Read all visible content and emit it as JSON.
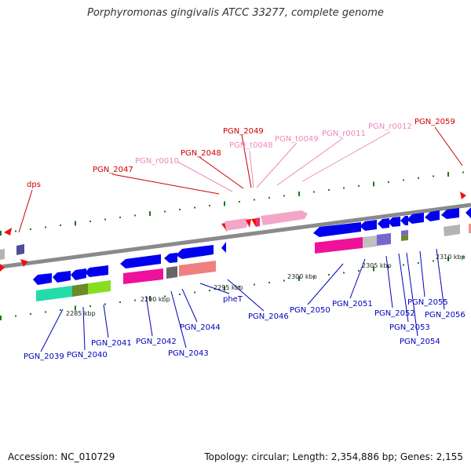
{
  "title": "Porphyromonas gingivalis ATCC 33277, complete genome",
  "footer": {
    "accession": "Accession: NC_010729",
    "summary": "Topology: circular; Length: 2,354,886 bp; Genes: 2,155"
  },
  "colors": {
    "backbone": "#8a8a8a",
    "tick": "#1a7a1a",
    "label_forward_red": "#cc0000",
    "label_forward_pink": "#ee88bb",
    "label_reverse": "#0000bb"
  },
  "scale_labels": [
    "2285 kbp",
    "2290 kbp",
    "2295 kbp",
    "2300 kbp",
    "2305 kbp",
    "2310 kbp"
  ],
  "genes": {
    "dps": "dps",
    "PGN_2047": "PGN_2047",
    "PGN_r0010": "PGN_r0010",
    "PGN_2048": "PGN_2048",
    "PGN_2049": "PGN_2049",
    "PGN_t0048": "PGN_t0048",
    "PGN_t0049": "PGN_t0049",
    "PGN_r0011": "PGN_r0011",
    "PGN_r0012": "PGN_r0012",
    "PGN_2059": "PGN_2059",
    "PGN_2039": "PGN_2039",
    "PGN_2040": "PGN_2040",
    "PGN_2041": "PGN_2041",
    "PGN_2042": "PGN_2042",
    "PGN_2043": "PGN_2043",
    "PGN_2044": "PGN_2044",
    "pheT": "pheT",
    "PGN_2046": "PGN_2046",
    "PGN_2050": "PGN_2050",
    "PGN_2051": "PGN_2051",
    "PGN_2052": "PGN_2052",
    "PGN_2053": "PGN_2053",
    "PGN_2054": "PGN_2054",
    "PGN_2055": "PGN_2055",
    "PGN_2056": "PGN_2056"
  }
}
